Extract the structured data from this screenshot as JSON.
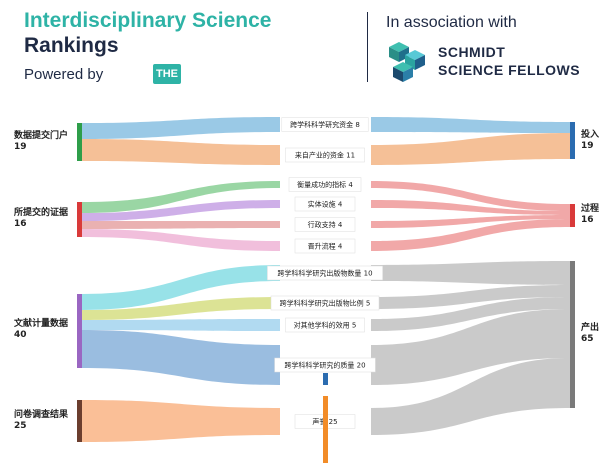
{
  "header": {
    "title_line1": "Interdisciplinary Science",
    "title_line2": "Rankings",
    "powered_by": "Powered by",
    "the_badge": "THE",
    "association": "In association with",
    "partner_line1": "SCHMIDT",
    "partner_line2": "SCIENCE FELLOWS"
  },
  "colors": {
    "title": "#2eb3a6",
    "dark": "#1f2a44"
  },
  "sankey": {
    "left_nodes": [
      {
        "name": "数据提交门户",
        "value": "19",
        "color": "#2e9e4a"
      },
      {
        "name": "所提交的证据",
        "value": "16",
        "color": "#d93a3a"
      },
      {
        "name": "文献计量数据",
        "value": "40",
        "color": "#9a66c2"
      },
      {
        "name": "问卷调查结果",
        "value": "25",
        "color": "#6b3e2e"
      }
    ],
    "right_nodes": [
      {
        "name": "投入",
        "value": "19",
        "color": "#2b6cb0"
      },
      {
        "name": "过程",
        "value": "16",
        "color": "#d93a3a"
      },
      {
        "name": "产出",
        "value": "65",
        "color": "#7a7a7a"
      }
    ],
    "flows": [
      {
        "label": "跨学科科学研究资金",
        "value": "8",
        "color": "#8fc3e3"
      },
      {
        "label": "来自产业的资金",
        "value": "11",
        "color": "#f4b98c"
      },
      {
        "label": "衡量成功的指标",
        "value": "4",
        "color": "#8fd19a"
      },
      {
        "label": "实体设施",
        "value": "4",
        "color": "#c9a6e6"
      },
      {
        "label": "行政支持",
        "value": "4",
        "color": "#e8a8a8"
      },
      {
        "label": "晋升流程",
        "value": "4",
        "color": "#f0b8d8"
      },
      {
        "label": "跨学科科学研究出版物数量",
        "value": "10",
        "color": "#8ddfe6"
      },
      {
        "label": "跨学科科学研究出版物比例",
        "value": "5",
        "color": "#d8e08a"
      },
      {
        "label": "对其他学科的效用",
        "value": "5",
        "color": "#a9d6f0"
      },
      {
        "label": "跨学科科学研究的质量",
        "value": "20",
        "color": "#8fb6dd"
      },
      {
        "label": "声誉",
        "value": "25",
        "color": "#f9b88c"
      }
    ]
  }
}
